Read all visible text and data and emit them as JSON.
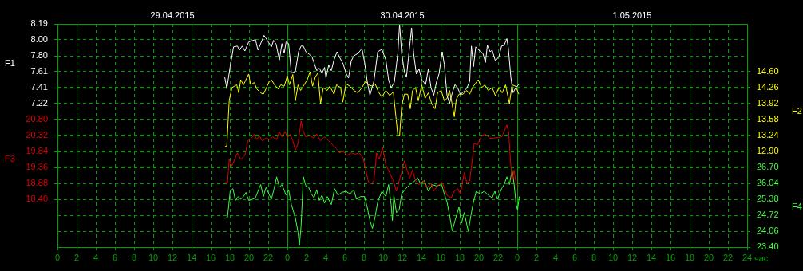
{
  "chart_data": [
    {
      "type": "line",
      "xlabel": "час.",
      "ylabel": "F1",
      "y2label": "F2",
      "grid": true,
      "legend": false,
      "marker": "none",
      "line_style": "solid",
      "xlim": [
        "2015-04-29T00:00",
        "2015-05-02T00:00"
      ],
      "xticks": [
        {
          "value": "2015-04-29T00:00",
          "label": "0"
        },
        {
          "value": "2015-04-29T02:00",
          "label": "2"
        },
        {
          "value": "2015-04-29T04:00",
          "label": "4"
        },
        {
          "value": "2015-04-29T06:00",
          "label": "6"
        },
        {
          "value": "2015-04-29T08:00",
          "label": "8"
        },
        {
          "value": "2015-04-29T10:00",
          "label": "10"
        },
        {
          "value": "2015-04-29T12:00",
          "label": "12"
        },
        {
          "value": "2015-04-29T14:00",
          "label": "14"
        },
        {
          "value": "2015-04-29T16:00",
          "label": "16"
        },
        {
          "value": "2015-04-29T18:00",
          "label": "18"
        },
        {
          "value": "2015-04-29T20:00",
          "label": "20"
        },
        {
          "value": "2015-04-29T22:00",
          "label": "22"
        },
        {
          "value": "2015-04-30T00:00",
          "label": "0"
        },
        {
          "value": "2015-04-30T02:00",
          "label": "2"
        },
        {
          "value": "2015-04-30T04:00",
          "label": "4"
        },
        {
          "value": "2015-04-30T06:00",
          "label": "6"
        },
        {
          "value": "2015-04-30T08:00",
          "label": "8"
        },
        {
          "value": "2015-04-30T10:00",
          "label": "10"
        },
        {
          "value": "2015-04-30T12:00",
          "label": "12"
        },
        {
          "value": "2015-04-30T14:00",
          "label": "14"
        },
        {
          "value": "2015-04-30T16:00",
          "label": "16"
        },
        {
          "value": "2015-04-30T18:00",
          "label": "18"
        },
        {
          "value": "2015-04-30T20:00",
          "label": "20"
        },
        {
          "value": "2015-04-30T22:00",
          "label": "22"
        },
        {
          "value": "2015-05-01T00:00",
          "label": "0"
        },
        {
          "value": "2015-05-01T02:00",
          "label": "2"
        },
        {
          "value": "2015-05-01T04:00",
          "label": "4"
        },
        {
          "value": "2015-05-01T06:00",
          "label": "6"
        },
        {
          "value": "2015-05-01T08:00",
          "label": "8"
        },
        {
          "value": "2015-05-01T10:00",
          "label": "10"
        },
        {
          "value": "2015-05-01T12:00",
          "label": "12"
        },
        {
          "value": "2015-05-01T14:00",
          "label": "14"
        },
        {
          "value": "2015-05-01T16:00",
          "label": "16"
        },
        {
          "value": "2015-05-01T18:00",
          "label": "18"
        },
        {
          "value": "2015-05-01T20:00",
          "label": "20"
        },
        {
          "value": "2015-05-01T22:00",
          "label": "22"
        },
        {
          "value": "2015-05-02T00:00",
          "label": "24"
        }
      ],
      "x2lim": [
        "2015-04-29T00:00",
        "2015-05-02T00:00"
      ],
      "x2ticks": [
        {
          "value": "2015-04-29T12:00",
          "label": "29.04.2015"
        },
        {
          "value": "2015-04-30T12:00",
          "label": "30.04.2015"
        },
        {
          "value": "2015-05-01T12:00",
          "label": "1.05.2015"
        }
      ],
      "ylim": [
        5.47,
        8.19
      ],
      "yticks": [
        {
          "value": 8.19,
          "label": "8.19"
        },
        {
          "value": 8.0,
          "label": "8.00"
        },
        {
          "value": 7.8,
          "label": "7.80"
        },
        {
          "value": 7.61,
          "label": "7.61"
        },
        {
          "value": 7.41,
          "label": "7.41"
        },
        {
          "value": 7.22,
          "label": "7.22"
        }
      ],
      "y2lim": [
        10.86,
        15.62
      ],
      "y2ticks": [
        {
          "value": 14.6,
          "label": "14.60"
        },
        {
          "value": 14.26,
          "label": "14.26"
        },
        {
          "value": 13.92,
          "label": "13.92"
        },
        {
          "value": 13.58,
          "label": "13.58"
        },
        {
          "value": 13.24,
          "label": "13.24"
        },
        {
          "value": 12.9,
          "label": "12.90"
        }
      ],
      "series": [
        {
          "axis": "y",
          "color": "#ffffff",
          "x": [
            "2015-04-29T17:28",
            "2015-04-29T17:41",
            "2015-04-29T18:02",
            "2015-04-29T18:23",
            "2015-04-29T18:47",
            "2015-04-29T19:00",
            "2015-04-29T19:17",
            "2015-04-29T19:34",
            "2015-04-29T19:58",
            "2015-04-29T20:40",
            "2015-04-29T20:56",
            "2015-04-29T21:34",
            "2015-04-29T22:04",
            "2015-04-29T22:20",
            "2015-04-29T22:34",
            "2015-04-29T22:50",
            "2015-04-29T23:10",
            "2015-04-29T23:26",
            "2015-04-29T23:40",
            "2015-04-29T23:52",
            "2015-04-30T00:08",
            "2015-04-30T00:25",
            "2015-04-30T00:50",
            "2015-04-30T01:10",
            "2015-04-30T01:26",
            "2015-04-30T01:40",
            "2015-04-30T01:56",
            "2015-04-30T02:17",
            "2015-04-30T02:34",
            "2015-04-30T02:50",
            "2015-04-30T03:04",
            "2015-04-30T03:20",
            "2015-04-30T03:37",
            "2015-04-30T03:53",
            "2015-04-30T04:02",
            "2015-04-30T04:19",
            "2015-04-30T04:35",
            "2015-04-30T04:52",
            "2015-04-30T05:11",
            "2015-04-30T05:25",
            "2015-04-30T05:50",
            "2015-04-30T06:07",
            "2015-04-30T06:23",
            "2015-04-30T06:40",
            "2015-04-30T06:56",
            "2015-04-30T07:22",
            "2015-04-30T07:47",
            "2015-04-30T08:04",
            "2015-04-30T08:20",
            "2015-04-30T08:37",
            "2015-04-30T09:02",
            "2015-04-30T09:26",
            "2015-04-30T09:52",
            "2015-04-30T10:17",
            "2015-04-30T10:34",
            "2015-04-30T10:50",
            "2015-04-30T11:10",
            "2015-04-30T11:32",
            "2015-04-30T11:43",
            "2015-04-30T11:56",
            "2015-04-30T12:13",
            "2015-04-30T12:26",
            "2015-04-30T12:38",
            "2015-04-30T12:58",
            "2015-04-30T13:11",
            "2015-04-30T13:28",
            "2015-04-30T13:45",
            "2015-04-30T14:02",
            "2015-04-30T14:26",
            "2015-04-30T14:43",
            "2015-04-30T15:00",
            "2015-04-30T15:17",
            "2015-04-30T15:34",
            "2015-04-30T15:50",
            "2015-04-30T16:10",
            "2015-04-30T16:23",
            "2015-04-30T16:40",
            "2015-04-30T16:56",
            "2015-04-30T17:13",
            "2015-04-30T17:30",
            "2015-04-30T17:47",
            "2015-04-30T18:04",
            "2015-04-30T18:28",
            "2015-04-30T18:45",
            "2015-04-30T19:02",
            "2015-04-30T19:13",
            "2015-04-30T19:26",
            "2015-04-30T19:40",
            "2015-04-30T20:00",
            "2015-04-30T20:25",
            "2015-04-30T20:41",
            "2015-04-30T20:53",
            "2015-04-30T21:10",
            "2015-04-30T21:23",
            "2015-04-30T21:43",
            "2015-04-30T22:05",
            "2015-04-30T22:22",
            "2015-04-30T22:38",
            "2015-04-30T22:55",
            "2015-04-30T23:04",
            "2015-04-30T23:20",
            "2015-04-30T23:34",
            "2015-04-30T23:50",
            "2015-05-01T00:10"
          ],
          "values": [
            7.54,
            7.4,
            7.67,
            7.91,
            7.92,
            7.87,
            7.92,
            7.86,
            7.97,
            8.0,
            7.87,
            8.05,
            7.96,
            7.91,
            7.99,
            7.94,
            7.75,
            7.95,
            7.83,
            7.97,
            7.95,
            7.59,
            7.61,
            7.85,
            7.92,
            7.92,
            7.85,
            7.82,
            7.79,
            7.7,
            7.62,
            7.65,
            7.59,
            7.66,
            7.53,
            7.69,
            7.62,
            7.75,
            7.85,
            7.79,
            7.7,
            7.59,
            7.53,
            7.74,
            7.8,
            7.83,
            7.89,
            7.72,
            7.49,
            7.32,
            7.49,
            7.85,
            7.88,
            7.75,
            7.51,
            7.41,
            7.48,
            7.83,
            8.19,
            7.83,
            7.61,
            7.54,
            7.77,
            8.14,
            7.83,
            7.58,
            7.64,
            7.51,
            7.45,
            7.64,
            7.41,
            7.32,
            7.48,
            7.58,
            7.85,
            7.7,
            7.32,
            7.22,
            7.35,
            7.45,
            7.41,
            7.33,
            7.37,
            7.41,
            7.49,
            7.92,
            7.67,
            7.91,
            7.87,
            7.83,
            7.72,
            7.93,
            7.85,
            7.87,
            7.74,
            7.79,
            7.92,
            7.93,
            8.01,
            7.9,
            7.54,
            7.35,
            7.41,
            7.45
          ]
        },
        {
          "axis": "y2",
          "color": "#ffff00",
          "x": [
            "2015-04-29T17:28",
            "2015-04-29T17:41",
            "2015-04-29T17:56",
            "2015-04-29T18:13",
            "2015-04-29T18:43",
            "2015-04-29T18:56",
            "2015-04-29T19:08",
            "2015-04-29T19:25",
            "2015-04-29T19:58",
            "2015-04-29T20:10",
            "2015-04-29T20:32",
            "2015-04-29T20:49",
            "2015-04-29T21:13",
            "2015-04-29T21:30",
            "2015-04-29T22:04",
            "2015-04-29T22:20",
            "2015-04-29T22:40",
            "2015-04-29T23:02",
            "2015-04-29T23:19",
            "2015-04-29T23:40",
            "2015-04-30T00:00",
            "2015-04-30T00:13",
            "2015-04-30T00:34",
            "2015-04-30T00:50",
            "2015-04-30T01:07",
            "2015-04-30T01:23",
            "2015-04-30T02:05",
            "2015-04-30T02:22",
            "2015-04-30T02:38",
            "2015-04-30T02:55",
            "2015-04-30T03:11",
            "2015-04-30T03:28",
            "2015-04-30T03:45",
            "2015-04-30T04:10",
            "2015-04-30T04:26",
            "2015-04-30T04:52",
            "2015-04-30T05:08",
            "2015-04-30T05:34",
            "2015-04-30T05:47",
            "2015-04-30T06:07",
            "2015-04-30T06:32",
            "2015-04-30T06:56",
            "2015-04-30T07:22",
            "2015-04-30T07:47",
            "2015-04-30T08:11",
            "2015-04-30T08:28",
            "2015-04-30T08:53",
            "2015-04-30T09:10",
            "2015-04-30T09:30",
            "2015-04-30T09:52",
            "2015-04-30T10:17",
            "2015-04-30T10:41",
            "2015-04-30T11:04",
            "2015-04-30T11:20",
            "2015-04-30T11:32",
            "2015-04-30T11:43",
            "2015-04-30T11:56",
            "2015-04-30T12:13",
            "2015-04-30T12:34",
            "2015-04-30T12:50",
            "2015-04-30T13:04",
            "2015-04-30T13:23",
            "2015-04-30T13:40",
            "2015-04-30T14:02",
            "2015-04-30T14:23",
            "2015-04-30T14:43",
            "2015-04-30T15:04",
            "2015-04-30T15:25",
            "2015-04-30T15:41",
            "2015-04-30T16:04",
            "2015-04-30T16:23",
            "2015-04-30T16:40",
            "2015-04-30T16:56",
            "2015-04-30T17:13",
            "2015-04-30T17:26",
            "2015-04-30T17:38",
            "2015-04-30T17:55",
            "2015-04-30T18:20",
            "2015-04-30T18:45",
            "2015-04-30T19:02",
            "2015-04-30T19:19",
            "2015-04-30T19:56",
            "2015-04-30T20:17",
            "2015-04-30T20:37",
            "2015-04-30T20:58",
            "2015-04-30T21:23",
            "2015-04-30T21:43",
            "2015-04-30T22:05",
            "2015-04-30T22:26",
            "2015-04-30T22:47",
            "2015-04-30T23:11",
            "2015-04-30T23:28",
            "2015-04-30T23:50",
            "2015-05-01T00:10"
          ],
          "values": [
            13.0,
            13.02,
            13.98,
            14.26,
            14.32,
            14.15,
            14.43,
            14.32,
            14.55,
            14.32,
            14.37,
            14.23,
            14.15,
            14.12,
            14.37,
            14.43,
            14.32,
            14.23,
            14.32,
            14.29,
            14.51,
            14.32,
            14.54,
            13.98,
            14.32,
            14.2,
            14.43,
            14.6,
            14.29,
            14.49,
            14.57,
            13.92,
            14.26,
            14.2,
            14.29,
            14.12,
            14.32,
            14.26,
            13.95,
            14.34,
            14.29,
            14.2,
            14.15,
            14.26,
            14.4,
            14.32,
            14.29,
            14.34,
            14.17,
            14.06,
            14.2,
            14.09,
            14.17,
            13.64,
            13.24,
            13.24,
            13.86,
            14.12,
            14.12,
            13.81,
            14.2,
            14.26,
            13.98,
            14.32,
            14.03,
            14.15,
            13.92,
            13.81,
            14.15,
            14.2,
            13.98,
            14.03,
            14.2,
            13.89,
            13.64,
            14.01,
            14.12,
            14.12,
            14.2,
            14.12,
            14.26,
            14.43,
            14.26,
            14.32,
            14.2,
            14.26,
            14.09,
            14.26,
            14.15,
            14.32,
            13.92,
            14.32,
            14.29,
            14.12
          ]
        }
      ]
    },
    {
      "type": "line",
      "ylabel": "F3",
      "y2label": "F4",
      "grid": "y",
      "legend": false,
      "marker": "none",
      "line_style": "solid",
      "tick_labels": "y",
      "xlim": [
        "2015-04-29T00:00",
        "2015-05-02T00:00"
      ],
      "ylim": [
        16.96,
        23.68
      ],
      "yticks": [
        {
          "value": 20.8,
          "label": "20.80"
        },
        {
          "value": 20.32,
          "label": "20.32"
        },
        {
          "value": 19.84,
          "label": "19.84"
        },
        {
          "value": 19.36,
          "label": "19.36"
        },
        {
          "value": 18.88,
          "label": "18.88"
        },
        {
          "value": 18.4,
          "label": "18.40"
        }
      ],
      "y2lim": [
        23.4,
        32.64
      ],
      "y2ticks": [
        {
          "value": 26.7,
          "label": "26.70"
        },
        {
          "value": 26.04,
          "label": "26.04"
        },
        {
          "value": 25.38,
          "label": "25.38"
        },
        {
          "value": 24.72,
          "label": "24.72"
        },
        {
          "value": 24.06,
          "label": "24.06"
        },
        {
          "value": 23.4,
          "label": "23.40"
        }
      ],
      "series": [
        {
          "axis": "y",
          "color": "#e00000",
          "x": [
            "2015-04-29T17:28",
            "2015-04-29T17:45",
            "2015-04-29T17:56",
            "2015-04-29T18:13",
            "2015-04-29T18:30",
            "2015-04-29T18:47",
            "2015-04-29T19:08",
            "2015-04-29T19:34",
            "2015-04-29T19:53",
            "2015-04-29T20:15",
            "2015-04-29T20:32",
            "2015-04-29T20:49",
            "2015-04-29T21:05",
            "2015-04-29T21:22",
            "2015-04-29T21:47",
            "2015-04-29T22:11",
            "2015-04-29T22:28",
            "2015-04-29T22:53",
            "2015-04-29T23:10",
            "2015-04-29T23:26",
            "2015-04-29T23:47",
            "2015-04-30T00:00",
            "2015-04-30T00:17",
            "2015-04-30T00:34",
            "2015-04-30T00:50",
            "2015-04-30T01:07",
            "2015-04-30T01:26",
            "2015-04-30T01:40",
            "2015-04-30T01:56",
            "2015-04-30T02:22",
            "2015-04-30T02:47",
            "2015-04-30T03:04",
            "2015-04-30T03:28",
            "2015-04-30T03:53",
            "2015-04-30T04:19",
            "2015-04-30T04:43",
            "2015-04-30T05:08",
            "2015-04-30T05:25",
            "2015-04-30T05:50",
            "2015-04-30T06:15",
            "2015-04-30T06:40",
            "2015-04-30T07:05",
            "2015-04-30T07:30",
            "2015-04-30T07:55",
            "2015-04-30T08:11",
            "2015-04-30T08:28",
            "2015-04-30T08:45",
            "2015-04-30T09:02",
            "2015-04-30T09:19",
            "2015-04-30T09:35",
            "2015-04-30T09:56",
            "2015-04-30T10:17",
            "2015-04-30T10:41",
            "2015-04-30T11:07",
            "2015-04-30T11:23",
            "2015-04-30T11:40",
            "2015-04-30T11:56",
            "2015-04-30T12:13",
            "2015-04-30T12:30",
            "2015-04-30T12:47",
            "2015-04-30T13:04",
            "2015-04-30T13:23",
            "2015-04-30T13:45",
            "2015-04-30T14:10",
            "2015-04-30T14:35",
            "2015-04-30T15:00",
            "2015-04-30T15:17",
            "2015-04-30T15:41",
            "2015-04-30T16:07",
            "2015-04-30T16:23",
            "2015-04-30T16:40",
            "2015-04-30T17:05",
            "2015-04-30T17:26",
            "2015-04-30T17:47",
            "2015-04-30T18:04",
            "2015-04-30T18:28",
            "2015-04-30T18:45",
            "2015-04-30T19:02",
            "2015-04-30T19:19",
            "2015-04-30T19:30",
            "2015-04-30T19:52",
            "2015-04-30T20:17",
            "2015-04-30T20:41",
            "2015-04-30T21:07",
            "2015-04-30T21:32",
            "2015-04-30T21:56",
            "2015-04-30T22:22",
            "2015-04-30T22:38",
            "2015-04-30T22:55",
            "2015-04-30T23:07",
            "2015-04-30T23:17",
            "2015-04-30T23:28",
            "2015-04-30T23:40",
            "2015-04-30T23:53",
            "2015-05-01T00:10"
          ],
          "values": [
            18.9,
            18.9,
            19.6,
            19.4,
            19.6,
            19.8,
            19.6,
            19.72,
            20.16,
            20.24,
            20.36,
            20.2,
            20.32,
            20.16,
            20.24,
            20.2,
            20.28,
            20.2,
            20.44,
            20.28,
            20.44,
            20.24,
            20.36,
            20.16,
            19.88,
            20.08,
            20.76,
            20.44,
            20.28,
            20.32,
            20.24,
            20.36,
            20.16,
            20.28,
            20.16,
            20.04,
            19.92,
            19.8,
            19.84,
            19.72,
            19.8,
            19.76,
            19.8,
            19.64,
            19.28,
            18.92,
            18.86,
            18.96,
            19.8,
            19.6,
            19.96,
            19.44,
            19.2,
            18.92,
            18.64,
            18.96,
            19.2,
            19.56,
            19.28,
            19.04,
            19.28,
            18.96,
            18.84,
            18.96,
            18.76,
            18.88,
            18.64,
            18.8,
            18.92,
            18.76,
            18.52,
            18.44,
            18.64,
            18.72,
            18.56,
            19.2,
            18.88,
            18.96,
            19.6,
            20.08,
            20.04,
            20.32,
            20.36,
            20.24,
            20.24,
            20.26,
            20.28,
            20.44,
            20.64,
            20.4,
            19.6,
            18.96,
            19.28,
            18.88,
            18.8
          ]
        },
        {
          "axis": "y2",
          "color": "#40ff40",
          "x": [
            "2015-04-29T17:28",
            "2015-04-29T17:45",
            "2015-04-29T18:02",
            "2015-04-29T18:19",
            "2015-04-29T18:35",
            "2015-04-29T18:52",
            "2015-04-29T19:08",
            "2015-04-29T19:25",
            "2015-04-29T19:41",
            "2015-04-29T19:58",
            "2015-04-29T20:23",
            "2015-04-29T20:40",
            "2015-04-29T20:56",
            "2015-04-29T21:13",
            "2015-04-29T21:30",
            "2015-04-29T21:47",
            "2015-04-29T22:04",
            "2015-04-29T22:20",
            "2015-04-29T22:37",
            "2015-04-29T22:53",
            "2015-04-29T23:10",
            "2015-04-29T23:26",
            "2015-04-29T23:52",
            "2015-04-30T00:08",
            "2015-04-30T00:25",
            "2015-04-30T00:50",
            "2015-04-30T01:07",
            "2015-04-30T01:15",
            "2015-04-30T01:26",
            "2015-04-30T01:40",
            "2015-04-30T01:56",
            "2015-04-30T02:13",
            "2015-04-30T02:30",
            "2015-04-30T02:47",
            "2015-04-30T03:04",
            "2015-04-30T03:20",
            "2015-04-30T03:37",
            "2015-04-30T03:53",
            "2015-04-30T04:10",
            "2015-04-30T04:35",
            "2015-04-30T04:56",
            "2015-04-30T05:17",
            "2015-04-30T05:41",
            "2015-04-30T06:07",
            "2015-04-30T06:32",
            "2015-04-30T06:56",
            "2015-04-30T07:13",
            "2015-04-30T07:38",
            "2015-04-30T08:04",
            "2015-04-30T08:20",
            "2015-04-30T08:37",
            "2015-04-30T08:53",
            "2015-04-30T09:10",
            "2015-04-30T09:26",
            "2015-04-30T09:52",
            "2015-04-30T10:17",
            "2015-04-30T10:34",
            "2015-04-30T10:50",
            "2015-04-30T10:58",
            "2015-04-30T11:07",
            "2015-04-30T11:23",
            "2015-04-30T11:40",
            "2015-04-30T11:56",
            "2015-04-30T12:22",
            "2015-04-30T12:47",
            "2015-04-30T13:11",
            "2015-04-30T13:37",
            "2015-04-30T13:53",
            "2015-04-30T14:19",
            "2015-04-30T14:43",
            "2015-04-30T15:08",
            "2015-04-30T15:34",
            "2015-04-30T16:07",
            "2015-04-30T16:23",
            "2015-04-30T16:40",
            "2015-04-30T16:56",
            "2015-04-30T17:13",
            "2015-04-30T17:30",
            "2015-04-30T17:55",
            "2015-04-30T18:11",
            "2015-04-30T18:28",
            "2015-04-30T18:53",
            "2015-04-30T19:10",
            "2015-04-30T19:26",
            "2015-04-30T19:43",
            "2015-04-30T20:08",
            "2015-04-30T20:34",
            "2015-04-30T20:58",
            "2015-04-30T21:23",
            "2015-04-30T21:40",
            "2015-04-30T21:56",
            "2015-04-30T22:22",
            "2015-04-30T22:38",
            "2015-04-30T22:55",
            "2015-04-30T23:11",
            "2015-04-30T23:28",
            "2015-04-30T23:40",
            "2015-04-30T23:53",
            "2015-05-01T00:02",
            "2015-05-01T00:13"
          ],
          "values": [
            24.59,
            24.63,
            25.71,
            25.82,
            25.33,
            25.49,
            25.38,
            25.49,
            25.66,
            25.33,
            25.38,
            25.44,
            25.71,
            25.99,
            25.49,
            25.88,
            25.6,
            25.38,
            25.82,
            26.31,
            25.88,
            25.99,
            25.55,
            25.77,
            25.16,
            24.61,
            24.01,
            23.46,
            24.28,
            26.31,
            25.93,
            25.88,
            25.6,
            25.44,
            25.77,
            25.33,
            25.55,
            25.22,
            25.49,
            25.16,
            25.82,
            25.55,
            25.66,
            25.71,
            25.6,
            25.77,
            25.38,
            25.49,
            25.49,
            25.05,
            24.5,
            24.17,
            24.67,
            25.27,
            25.71,
            25.49,
            25.99,
            25.16,
            24.5,
            25.55,
            24.83,
            24.94,
            25.6,
            25.82,
            25.99,
            26.1,
            26.26,
            26.04,
            26.15,
            25.71,
            25.99,
            25.93,
            25.99,
            25.6,
            25.27,
            24.72,
            24.06,
            24.5,
            25.05,
            24.39,
            24.83,
            24.06,
            24.72,
            25.27,
            25.71,
            25.6,
            25.71,
            25.55,
            25.44,
            25.71,
            25.38,
            25.82,
            25.99,
            26.31,
            25.99,
            26.59,
            26.04,
            25.16,
            24.94,
            25.49
          ]
        }
      ]
    }
  ]
}
